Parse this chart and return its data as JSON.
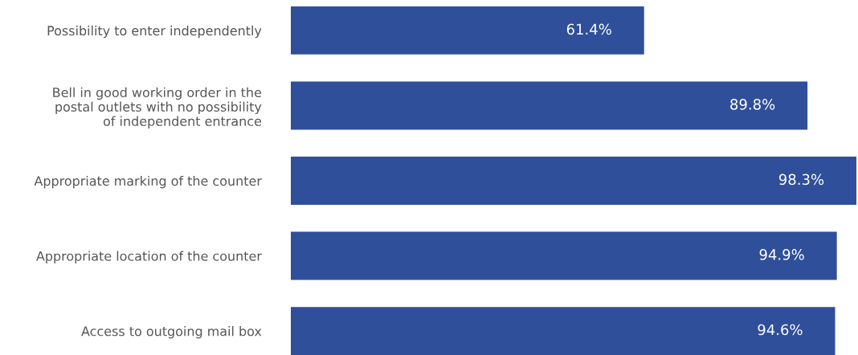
{
  "chart_data": {
    "type": "bar",
    "orientation": "horizontal",
    "categories": [
      "Possibility to enter independently",
      "Bell in good working order in the\npostal outlets with no possibility\nof independent entrance",
      "Appropriate marking of the counter",
      "Appropriate location of the counter",
      "Access to outgoing mail box"
    ],
    "values": [
      61.4,
      89.8,
      98.3,
      94.9,
      94.6
    ],
    "value_labels": [
      "61.4%",
      "89.8%",
      "98.3%",
      "94.9%",
      "94.6%"
    ],
    "color": "#2f4f9b",
    "xlim": [
      0,
      98.3
    ],
    "tick_labels": "y",
    "grid": false,
    "legend": false
  }
}
